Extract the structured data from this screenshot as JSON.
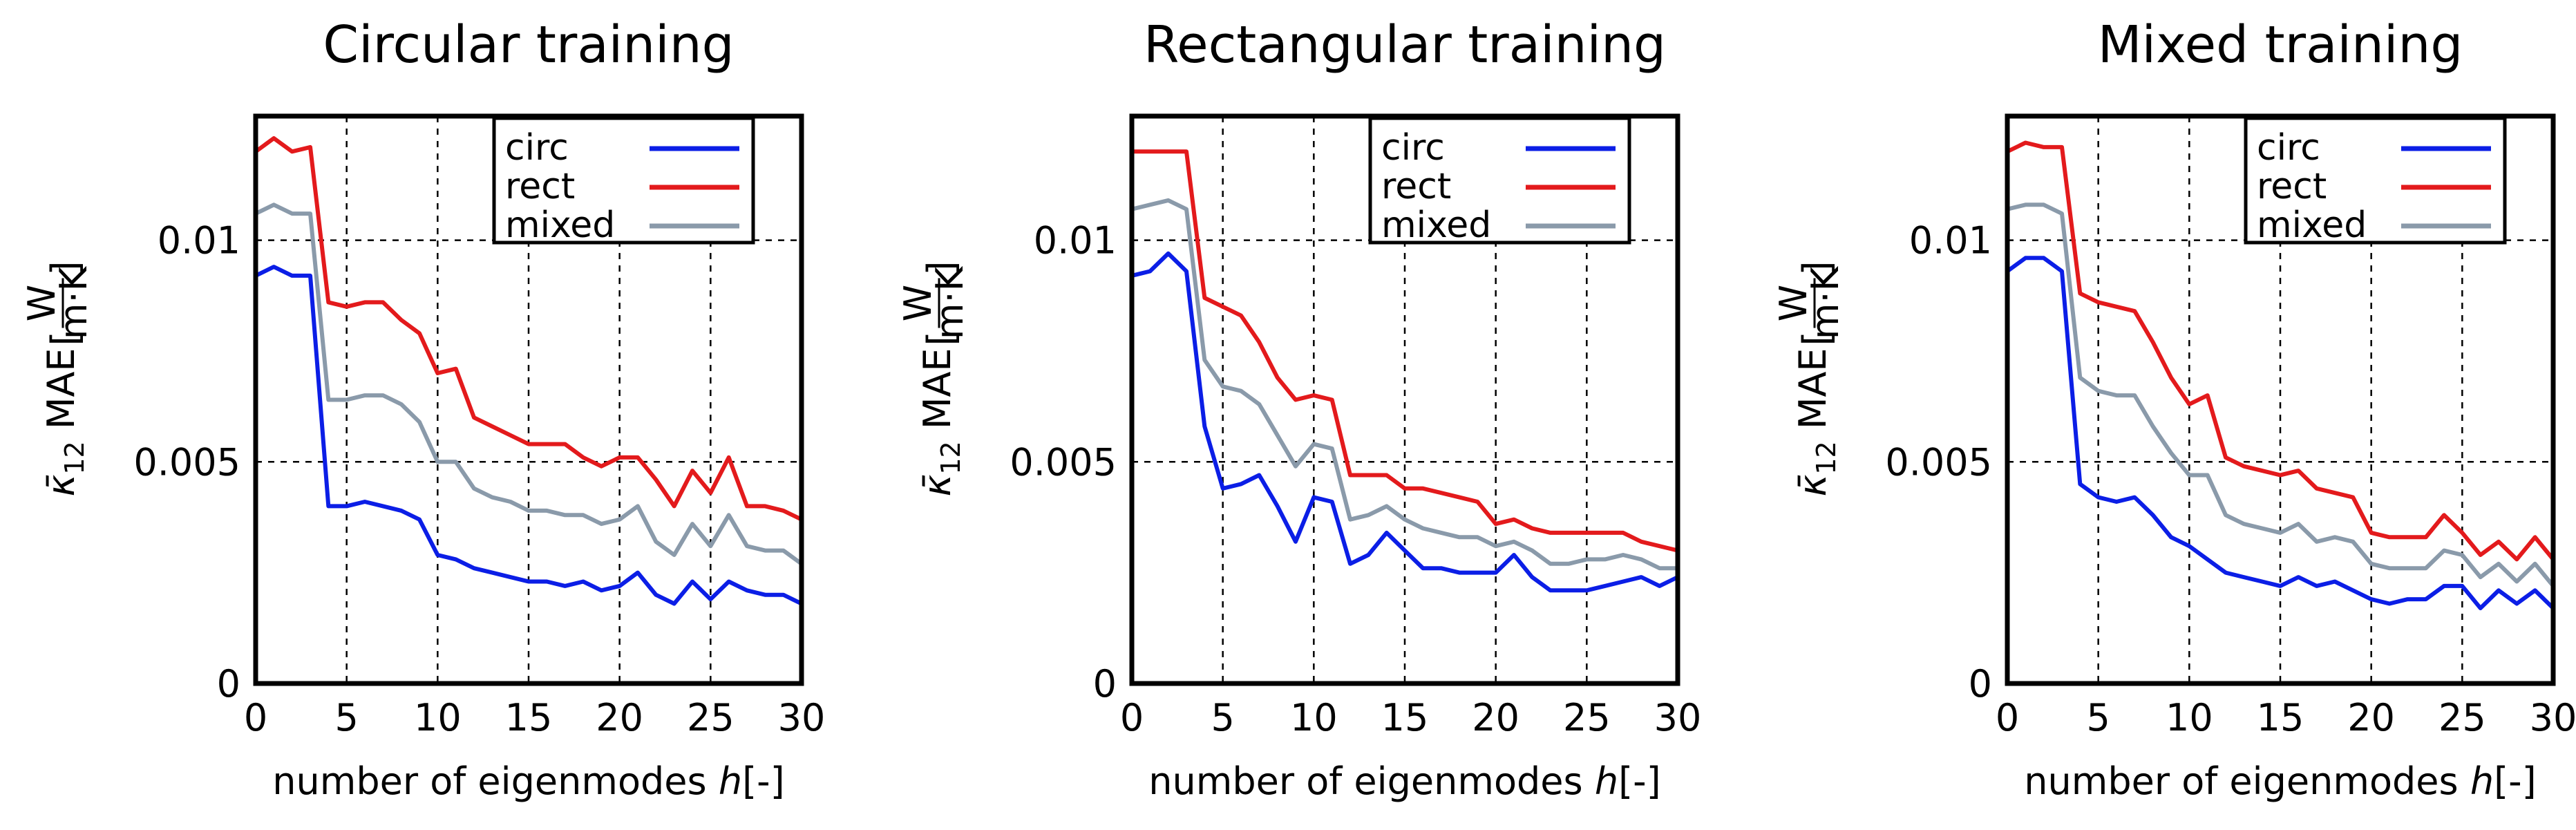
{
  "chart_data": [
    {
      "type": "line",
      "title": "Circular training",
      "xlabel": "number of eigenmodes",
      "xlabel_var": "h",
      "xlabel_unit": "[-]",
      "ylabel_sym": "κ̄",
      "ylabel_sub": "12",
      "ylabel_mae": "MAE",
      "ylabel_unit_num": "W",
      "ylabel_unit_den": "m·K",
      "xlim": [
        0,
        30
      ],
      "ylim": [
        0,
        0.0128
      ],
      "xticks": [
        0,
        5,
        10,
        15,
        20,
        25,
        30
      ],
      "xtick_labels": [
        "0",
        "5",
        "10",
        "15",
        "20",
        "25",
        "30"
      ],
      "yticks": [
        0,
        0.005,
        0.01
      ],
      "ytick_labels": [
        "0",
        "0.005",
        "0.01"
      ],
      "legend": "top-right",
      "x": [
        0,
        1,
        2,
        3,
        4,
        5,
        6,
        7,
        8,
        9,
        10,
        11,
        12,
        13,
        14,
        15,
        16,
        17,
        18,
        19,
        20,
        21,
        22,
        23,
        24,
        25,
        26,
        27,
        28,
        29,
        30
      ],
      "series": [
        {
          "name": "circ",
          "color": "#0b1ee6",
          "values": [
            0.0092,
            0.0094,
            0.0092,
            0.0092,
            0.004,
            0.004,
            0.0041,
            0.004,
            0.0039,
            0.0037,
            0.0029,
            0.0028,
            0.0026,
            0.0025,
            0.0024,
            0.0023,
            0.0023,
            0.0022,
            0.0023,
            0.0021,
            0.0022,
            0.0025,
            0.002,
            0.0018,
            0.0023,
            0.0019,
            0.0023,
            0.0021,
            0.002,
            0.002,
            0.0018
          ]
        },
        {
          "name": "rect",
          "color": "#e31a1c",
          "values": [
            0.012,
            0.0123,
            0.012,
            0.0121,
            0.0086,
            0.0085,
            0.0086,
            0.0086,
            0.0082,
            0.0079,
            0.007,
            0.0071,
            0.006,
            0.0058,
            0.0056,
            0.0054,
            0.0054,
            0.0054,
            0.0051,
            0.0049,
            0.0051,
            0.0051,
            0.0046,
            0.004,
            0.0048,
            0.0043,
            0.0051,
            0.004,
            0.004,
            0.0039,
            0.0037
          ]
        },
        {
          "name": "mixed",
          "color": "#8a9aaa",
          "values": [
            0.0106,
            0.0108,
            0.0106,
            0.0106,
            0.0064,
            0.0064,
            0.0065,
            0.0065,
            0.0063,
            0.0059,
            0.005,
            0.005,
            0.0044,
            0.0042,
            0.0041,
            0.0039,
            0.0039,
            0.0038,
            0.0038,
            0.0036,
            0.0037,
            0.004,
            0.0032,
            0.0029,
            0.0036,
            0.0031,
            0.0038,
            0.0031,
            0.003,
            0.003,
            0.0027
          ]
        }
      ]
    },
    {
      "type": "line",
      "title": "Rectangular training",
      "xlabel": "number of eigenmodes",
      "xlabel_var": "h",
      "xlabel_unit": "[-]",
      "ylabel_sym": "κ̄",
      "ylabel_sub": "12",
      "ylabel_mae": "MAE",
      "ylabel_unit_num": "W",
      "ylabel_unit_den": "m·K",
      "xlim": [
        0,
        30
      ],
      "ylim": [
        0,
        0.0128
      ],
      "xticks": [
        0,
        5,
        10,
        15,
        20,
        25,
        30
      ],
      "xtick_labels": [
        "0",
        "5",
        "10",
        "15",
        "20",
        "25",
        "30"
      ],
      "yticks": [
        0,
        0.005,
        0.01
      ],
      "ytick_labels": [
        "0",
        "0.005",
        "0.01"
      ],
      "legend": "top-right",
      "x": [
        0,
        1,
        2,
        3,
        4,
        5,
        6,
        7,
        8,
        9,
        10,
        11,
        12,
        13,
        14,
        15,
        16,
        17,
        18,
        19,
        20,
        21,
        22,
        23,
        24,
        25,
        26,
        27,
        28,
        29,
        30
      ],
      "series": [
        {
          "name": "circ",
          "color": "#0b1ee6",
          "values": [
            0.0092,
            0.0093,
            0.0097,
            0.0093,
            0.0058,
            0.0044,
            0.0045,
            0.0047,
            0.004,
            0.0032,
            0.0042,
            0.0041,
            0.0027,
            0.0029,
            0.0034,
            0.003,
            0.0026,
            0.0026,
            0.0025,
            0.0025,
            0.0025,
            0.0029,
            0.0024,
            0.0021,
            0.0021,
            0.0021,
            0.0022,
            0.0023,
            0.0024,
            0.0022,
            0.0024
          ]
        },
        {
          "name": "rect",
          "color": "#e31a1c",
          "values": [
            0.012,
            0.012,
            0.012,
            0.012,
            0.0087,
            0.0085,
            0.0083,
            0.0077,
            0.0069,
            0.0064,
            0.0065,
            0.0064,
            0.0047,
            0.0047,
            0.0047,
            0.0044,
            0.0044,
            0.0043,
            0.0042,
            0.0041,
            0.0036,
            0.0037,
            0.0035,
            0.0034,
            0.0034,
            0.0034,
            0.0034,
            0.0034,
            0.0032,
            0.0031,
            0.003
          ]
        },
        {
          "name": "mixed",
          "color": "#8a9aaa",
          "values": [
            0.0107,
            0.0108,
            0.0109,
            0.0107,
            0.0073,
            0.0067,
            0.0066,
            0.0063,
            0.0056,
            0.0049,
            0.0054,
            0.0053,
            0.0037,
            0.0038,
            0.004,
            0.0037,
            0.0035,
            0.0034,
            0.0033,
            0.0033,
            0.0031,
            0.0032,
            0.003,
            0.0027,
            0.0027,
            0.0028,
            0.0028,
            0.0029,
            0.0028,
            0.0026,
            0.0026
          ]
        }
      ]
    },
    {
      "type": "line",
      "title": "Mixed training",
      "xlabel": "number of eigenmodes",
      "xlabel_var": "h",
      "xlabel_unit": "[-]",
      "ylabel_sym": "κ̄",
      "ylabel_sub": "12",
      "ylabel_mae": "MAE",
      "ylabel_unit_num": "W",
      "ylabel_unit_den": "m·K",
      "xlim": [
        0,
        30
      ],
      "ylim": [
        0,
        0.0128
      ],
      "xticks": [
        0,
        5,
        10,
        15,
        20,
        25,
        30
      ],
      "xtick_labels": [
        "0",
        "5",
        "10",
        "15",
        "20",
        "25",
        "30"
      ],
      "yticks": [
        0,
        0.005,
        0.01
      ],
      "ytick_labels": [
        "0",
        "0.005",
        "0.01"
      ],
      "legend": "top-right",
      "x": [
        0,
        1,
        2,
        3,
        4,
        5,
        6,
        7,
        8,
        9,
        10,
        11,
        12,
        13,
        14,
        15,
        16,
        17,
        18,
        19,
        20,
        21,
        22,
        23,
        24,
        25,
        26,
        27,
        28,
        29,
        30
      ],
      "series": [
        {
          "name": "circ",
          "color": "#0b1ee6",
          "values": [
            0.0093,
            0.0096,
            0.0096,
            0.0093,
            0.0045,
            0.0042,
            0.0041,
            0.0042,
            0.0038,
            0.0033,
            0.0031,
            0.0028,
            0.0025,
            0.0024,
            0.0023,
            0.0022,
            0.0024,
            0.0022,
            0.0023,
            0.0021,
            0.0019,
            0.0018,
            0.0019,
            0.0019,
            0.0022,
            0.0022,
            0.0017,
            0.0021,
            0.0018,
            0.0021,
            0.0017
          ]
        },
        {
          "name": "rect",
          "color": "#e31a1c",
          "values": [
            0.012,
            0.0122,
            0.0121,
            0.0121,
            0.0088,
            0.0086,
            0.0085,
            0.0084,
            0.0077,
            0.0069,
            0.0063,
            0.0065,
            0.0051,
            0.0049,
            0.0048,
            0.0047,
            0.0048,
            0.0044,
            0.0043,
            0.0042,
            0.0034,
            0.0033,
            0.0033,
            0.0033,
            0.0038,
            0.0034,
            0.0029,
            0.0032,
            0.0028,
            0.0033,
            0.0028
          ]
        },
        {
          "name": "mixed",
          "color": "#8a9aaa",
          "values": [
            0.0107,
            0.0108,
            0.0108,
            0.0106,
            0.0069,
            0.0066,
            0.0065,
            0.0065,
            0.0058,
            0.0052,
            0.0047,
            0.0047,
            0.0038,
            0.0036,
            0.0035,
            0.0034,
            0.0036,
            0.0032,
            0.0033,
            0.0032,
            0.0027,
            0.0026,
            0.0026,
            0.0026,
            0.003,
            0.0029,
            0.0024,
            0.0027,
            0.0023,
            0.0027,
            0.0022
          ]
        }
      ]
    }
  ]
}
